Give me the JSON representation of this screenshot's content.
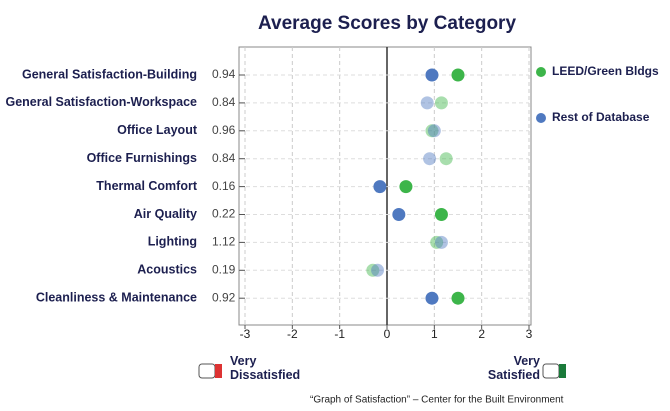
{
  "chart_data": {
    "type": "dot",
    "title": "Average Scores by Category",
    "categories": [
      "General Satisfaction-Building",
      "General Satisfaction-Workspace",
      "Office Layout",
      "Office Furnishings",
      "Thermal Comfort",
      "Air Quality",
      "Lighting",
      "Acoustics",
      "Cleanliness & Maintenance"
    ],
    "scores": [
      0.94,
      0.84,
      0.96,
      0.84,
      0.16,
      0.22,
      1.12,
      0.19,
      0.92
    ],
    "significant": [
      true,
      false,
      false,
      false,
      true,
      true,
      false,
      false,
      true
    ],
    "series": [
      {
        "name": "LEED/Green Bldgs",
        "color": "#3db54a",
        "values": [
          1.5,
          1.15,
          0.95,
          1.25,
          0.4,
          1.15,
          1.05,
          -0.3,
          1.5
        ]
      },
      {
        "name": "Rest of Database",
        "color": "#4f79c0",
        "values": [
          0.95,
          0.85,
          1.0,
          0.9,
          -0.15,
          0.25,
          1.15,
          -0.2,
          0.95
        ]
      }
    ],
    "xlim": [
      -3,
      3
    ],
    "xticks": [
      -3,
      -2,
      -1,
      0,
      1,
      2,
      3
    ],
    "grid": true,
    "low_label": "Very Dissatisfied",
    "high_label": "Very Satisfied",
    "source": "“Graph of Satisfaction” – Center for the Built Environment"
  }
}
